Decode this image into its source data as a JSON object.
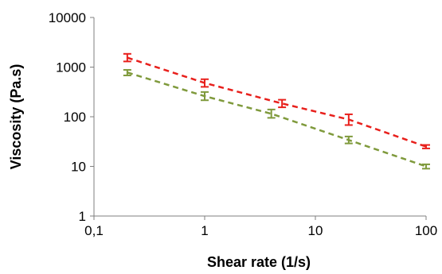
{
  "chart_data": {
    "type": "scatter",
    "title": "",
    "xlabel": "Shear rate (1/s)",
    "ylabel": "Viscosity (Pa.s)",
    "xscale": "log",
    "yscale": "log",
    "xlim": [
      0.1,
      100
    ],
    "ylim": [
      1,
      10000
    ],
    "x_tick_labels": [
      "0,1",
      "1",
      "10",
      "100"
    ],
    "y_tick_labels": [
      "1",
      "10",
      "100",
      "1000",
      "10000"
    ],
    "grid": false,
    "legend": "none",
    "series": [
      {
        "color": "#e8201c",
        "marker": "error-bar",
        "line": "dashed",
        "points": [
          {
            "x": 0.2,
            "y": 1550,
            "err_low": 1300,
            "err_high": 1850
          },
          {
            "x": 1,
            "y": 480,
            "err_low": 400,
            "err_high": 570
          },
          {
            "x": 5,
            "y": 185,
            "err_low": 155,
            "err_high": 220
          },
          {
            "x": 20,
            "y": 88,
            "err_low": 68,
            "err_high": 112
          },
          {
            "x": 100,
            "y": 25,
            "err_low": 23,
            "err_high": 27
          }
        ]
      },
      {
        "color": "#7f9a3c",
        "marker": "error-bar",
        "line": "dashed",
        "points": [
          {
            "x": 0.2,
            "y": 780,
            "err_low": 680,
            "err_high": 880
          },
          {
            "x": 1,
            "y": 260,
            "err_low": 215,
            "err_high": 315
          },
          {
            "x": 4,
            "y": 115,
            "err_low": 95,
            "err_high": 140
          },
          {
            "x": 20,
            "y": 34,
            "err_low": 29,
            "err_high": 40
          },
          {
            "x": 100,
            "y": 10,
            "err_low": 9,
            "err_high": 11
          }
        ]
      }
    ]
  }
}
